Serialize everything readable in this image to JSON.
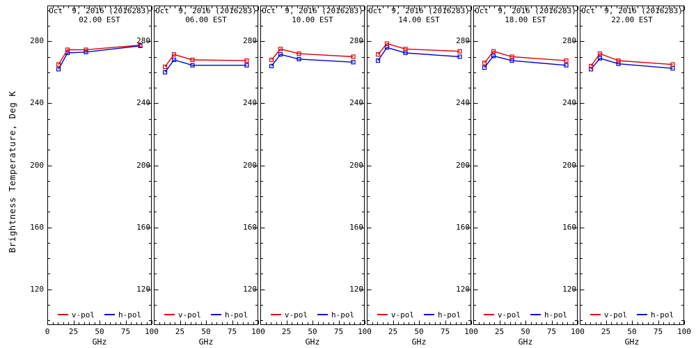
{
  "chart_data": {
    "type": "line",
    "title_date": "Oct  9, 2016 (2016283)",
    "ylabel": "Brightness Temperature, Deg K",
    "xlabel": "GHz",
    "x_ghz": [
      10.7,
      19.35,
      37,
      89
    ],
    "xlim": [
      0,
      100
    ],
    "ylim": [
      97,
      303
    ],
    "x_major_ticks": [
      0,
      25,
      50,
      75,
      100
    ],
    "x_minor_step": 5,
    "y_major_ticks": [
      280,
      240,
      200,
      160,
      120
    ],
    "y_minor_step": 10,
    "grid": false,
    "legend_position": "bottom-inside",
    "marker": "open-square",
    "series_meta": [
      {
        "name": "v-pol",
        "color": "#dd0000"
      },
      {
        "name": "h-pol",
        "color": "#0000cc"
      }
    ],
    "panels": [
      {
        "time": "02.00 EST",
        "v_pol": [
          265.0,
          274.5,
          274.5,
          277.5
        ],
        "h_pol": [
          262.0,
          272.5,
          273.0,
          277.0
        ]
      },
      {
        "time": "06.00 EST",
        "v_pol": [
          263.5,
          271.5,
          268.0,
          267.5
        ],
        "h_pol": [
          260.0,
          268.0,
          264.5,
          264.5
        ]
      },
      {
        "time": "10.00 EST",
        "v_pol": [
          268.0,
          275.0,
          272.0,
          270.0
        ],
        "h_pol": [
          264.0,
          271.5,
          268.5,
          266.5
        ]
      },
      {
        "time": "14.00 EST",
        "v_pol": [
          271.5,
          278.5,
          275.0,
          273.5
        ],
        "h_pol": [
          267.5,
          276.0,
          272.5,
          270.0
        ]
      },
      {
        "time": "18.00 EST",
        "v_pol": [
          266.0,
          273.5,
          270.0,
          267.5
        ],
        "h_pol": [
          263.0,
          270.5,
          267.5,
          264.5
        ]
      },
      {
        "time": "22.00 EST",
        "v_pol": [
          264.0,
          272.0,
          267.5,
          265.0
        ],
        "h_pol": [
          262.0,
          269.0,
          265.5,
          262.5
        ]
      }
    ]
  },
  "axis_color": "#000000",
  "background": "#ffffff"
}
